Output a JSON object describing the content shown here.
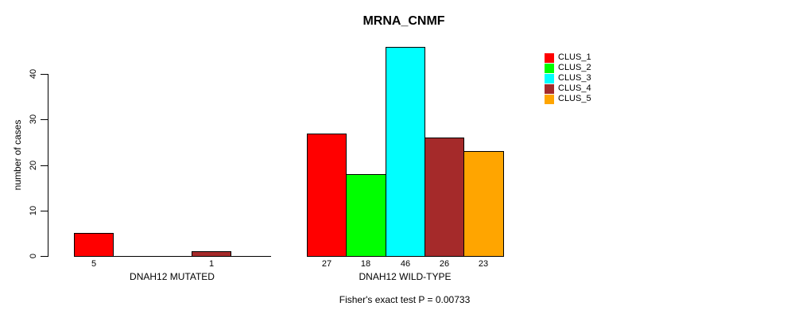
{
  "chart_data": {
    "type": "bar",
    "title": "MRNA_CNMF",
    "ylabel": "number of cases",
    "xlabel": "",
    "ylim": [
      0,
      46
    ],
    "yticks": [
      0,
      10,
      20,
      30,
      40
    ],
    "grid": false,
    "legend_position": "top-right",
    "categories": [
      "DNAH12 MUTATED",
      "DNAH12 WILD-TYPE"
    ],
    "series": [
      {
        "name": "CLUS_1",
        "color": "#FF0000",
        "values": [
          5,
          27
        ]
      },
      {
        "name": "CLUS_2",
        "color": "#00FF00",
        "values": [
          0,
          18
        ]
      },
      {
        "name": "CLUS_3",
        "color": "#00FFFF",
        "values": [
          0,
          46
        ]
      },
      {
        "name": "CLUS_4",
        "color": "#A52A2A",
        "values": [
          1,
          26
        ]
      },
      {
        "name": "CLUS_5",
        "color": "#FFA500",
        "values": [
          0,
          23
        ]
      }
    ],
    "bar_labels_shown_for_nonzero_only": true,
    "annotation": "Fisher's exact test P = 0.00733",
    "axis_color": "#000000",
    "bar_border_color": "#000000"
  }
}
